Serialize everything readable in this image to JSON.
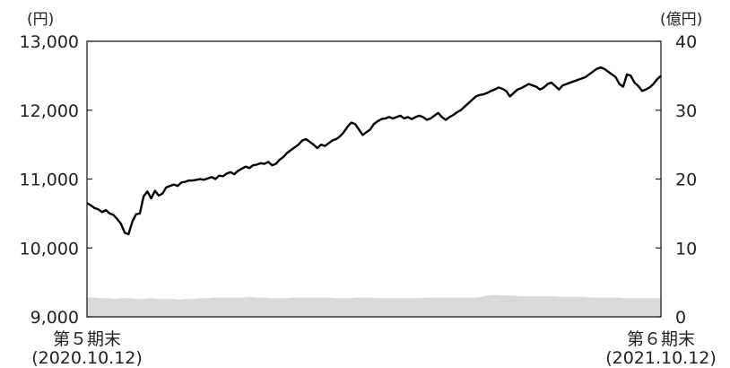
{
  "chart_data": {
    "type": "line",
    "left_axis": {
      "unit": "(円)",
      "range": [
        9000,
        13000
      ],
      "ticks": [
        {
          "value": 9000,
          "label": "9,000"
        },
        {
          "value": 10000,
          "label": "10,000"
        },
        {
          "value": 11000,
          "label": "11,000"
        },
        {
          "value": 12000,
          "label": "12,000"
        },
        {
          "value": 13000,
          "label": "13,000"
        }
      ]
    },
    "right_axis": {
      "unit": "(億円)",
      "range": [
        0,
        40
      ],
      "ticks": [
        {
          "value": 0,
          "label": "0"
        },
        {
          "value": 10,
          "label": "10"
        },
        {
          "value": 20,
          "label": "20"
        },
        {
          "value": 30,
          "label": "30"
        },
        {
          "value": 40,
          "label": "40"
        }
      ]
    },
    "x_axis": {
      "start_label": [
        "第５期末",
        "(2020.10.12)"
      ],
      "end_label": [
        "第６期末",
        "(2021.10.12)"
      ]
    },
    "price_line": {
      "axis": "left",
      "color": "#000000",
      "values": [
        10650,
        10620,
        10580,
        10560,
        10520,
        10550,
        10500,
        10480,
        10420,
        10350,
        10220,
        10200,
        10380,
        10490,
        10500,
        10750,
        10820,
        10720,
        10830,
        10760,
        10790,
        10880,
        10900,
        10920,
        10900,
        10950,
        10960,
        10980,
        10980,
        10990,
        11000,
        10990,
        11010,
        11030,
        11000,
        11050,
        11040,
        11080,
        11100,
        11070,
        11120,
        11150,
        11180,
        11160,
        11200,
        11210,
        11230,
        11220,
        11250,
        11200,
        11220,
        11280,
        11320,
        11380,
        11420,
        11460,
        11500,
        11560,
        11580,
        11540,
        11500,
        11450,
        11500,
        11480,
        11520,
        11560,
        11580,
        11620,
        11680,
        11760,
        11820,
        11800,
        11720,
        11640,
        11680,
        11720,
        11800,
        11840,
        11870,
        11880,
        11900,
        11880,
        11900,
        11920,
        11880,
        11900,
        11870,
        11900,
        11920,
        11900,
        11860,
        11880,
        11920,
        11960,
        11900,
        11860,
        11900,
        11930,
        11970,
        12000,
        12050,
        12100,
        12150,
        12200,
        12220,
        12230,
        12250,
        12280,
        12300,
        12330,
        12310,
        12280,
        12200,
        12250,
        12300,
        12320,
        12350,
        12380,
        12360,
        12340,
        12300,
        12330,
        12380,
        12400,
        12350,
        12300,
        12360,
        12380,
        12400,
        12420,
        12440,
        12460,
        12480,
        12520,
        12560,
        12600,
        12620,
        12600,
        12560,
        12520,
        12480,
        12380,
        12340,
        12520,
        12500,
        12400,
        12350,
        12280,
        12300,
        12330,
        12380,
        12450,
        12500
      ]
    },
    "net_assets_area": {
      "axis": "right",
      "color": "#d9d9d9",
      "values": [
        2.8,
        2.8,
        2.7,
        2.7,
        2.6,
        2.7,
        2.7,
        2.6,
        2.6,
        2.7,
        2.6,
        2.6,
        2.6,
        2.5,
        2.6,
        2.6,
        2.7,
        2.7,
        2.8,
        2.8,
        2.8,
        2.8,
        2.8,
        2.9,
        2.8,
        2.8,
        2.7,
        2.7,
        2.7,
        2.8,
        2.8,
        2.8,
        2.8,
        2.8,
        2.8,
        2.7,
        2.7,
        2.7,
        2.8,
        2.8,
        2.8,
        2.7,
        2.7,
        2.7,
        2.7,
        2.7,
        2.7,
        2.7,
        2.8,
        2.8,
        2.8,
        2.8,
        2.8,
        2.8,
        2.8,
        2.8,
        3.0,
        3.2,
        3.2,
        3.1,
        3.1,
        3.0,
        3.0,
        3.0,
        3.0,
        3.0,
        3.0,
        2.9,
        2.9,
        2.9,
        2.9,
        2.8,
        2.8,
        2.8,
        2.8,
        2.8,
        2.7,
        2.7,
        2.7,
        2.7,
        2.7,
        2.7
      ]
    }
  }
}
